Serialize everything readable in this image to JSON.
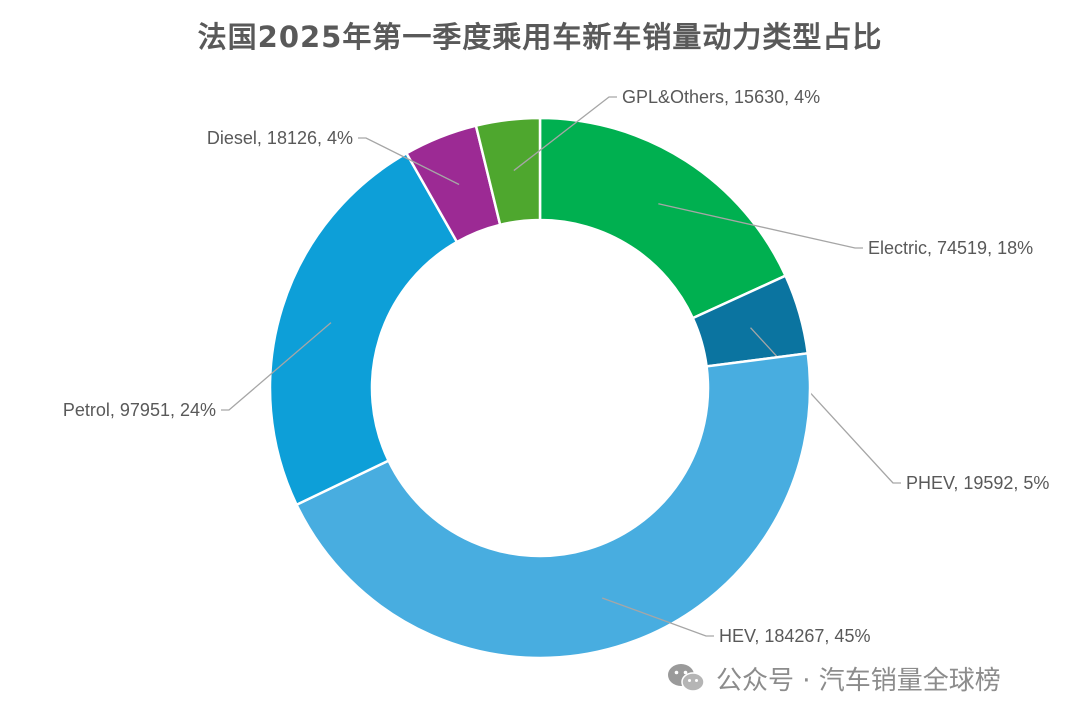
{
  "chart_data": {
    "type": "pie",
    "title": "法国2025年第一季度乘用车新车销量动力类型占比",
    "donut": true,
    "slices": [
      {
        "label": "Electric",
        "value": 74519,
        "percent": "18%",
        "color": "#00B050"
      },
      {
        "label": "PHEV",
        "value": 19592,
        "percent": "5%",
        "color": "#0B74A0"
      },
      {
        "label": "HEV",
        "value": 184267,
        "percent": "45%",
        "color": "#48ADE0"
      },
      {
        "label": "Petrol",
        "value": 97951,
        "percent": "24%",
        "color": "#0D9FD8"
      },
      {
        "label": "Diesel",
        "value": 18126,
        "percent": "4%",
        "color": "#9C2A94"
      },
      {
        "label": "GPL&Others",
        "value": 15630,
        "percent": "4%",
        "color": "#4EA72E"
      }
    ],
    "legend": "none (data labels with leader lines)"
  },
  "watermark": {
    "text": "公众号 · 汽车销量全球榜",
    "icon": "wechat-icon"
  }
}
